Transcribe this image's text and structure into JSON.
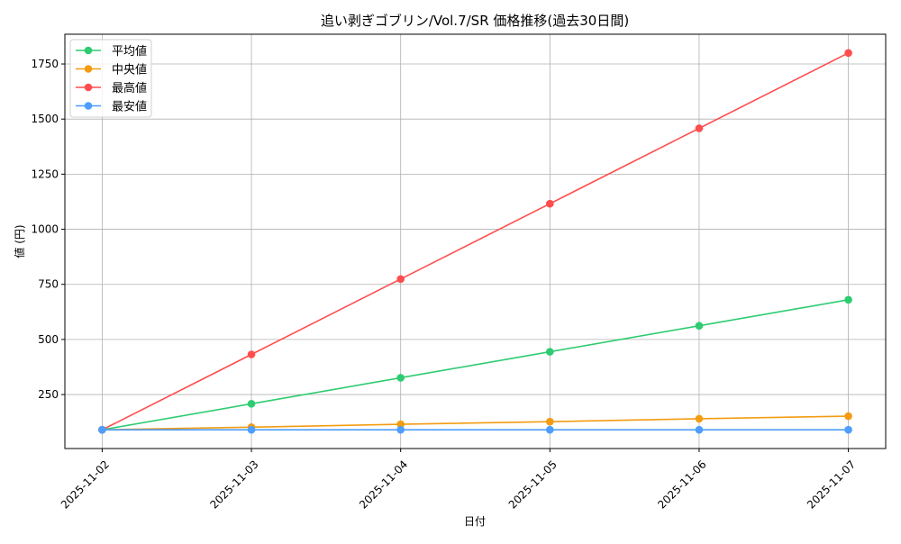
{
  "chart_data": {
    "type": "line",
    "title": "追い剥ぎゴブリン/Vol.7/SR 価格推移(過去30日間)",
    "xlabel": "日付",
    "ylabel": "値 (円)",
    "categories": [
      "2025-11-02",
      "2025-11-03",
      "2025-11-04",
      "2025-11-05",
      "2025-11-06",
      "2025-11-07"
    ],
    "yticks": [
      250,
      500,
      750,
      1000,
      1250,
      1500,
      1750
    ],
    "ylim": [
      5,
      1885
    ],
    "grid": true,
    "legend_position": "top-left",
    "series": [
      {
        "name": "平均値",
        "color": "#2ecc71",
        "values": [
          90,
          208,
          326,
          444,
          562,
          680
        ]
      },
      {
        "name": "中央値",
        "color": "#f39c12",
        "values": [
          90,
          102,
          115,
          127,
          140,
          152
        ]
      },
      {
        "name": "最高値",
        "color": "#ff4d4d",
        "values": [
          90,
          432,
          774,
          1116,
          1458,
          1800
        ]
      },
      {
        "name": "最安値",
        "color": "#4d9eff",
        "values": [
          90,
          90,
          90,
          90,
          90,
          90
        ]
      }
    ]
  }
}
